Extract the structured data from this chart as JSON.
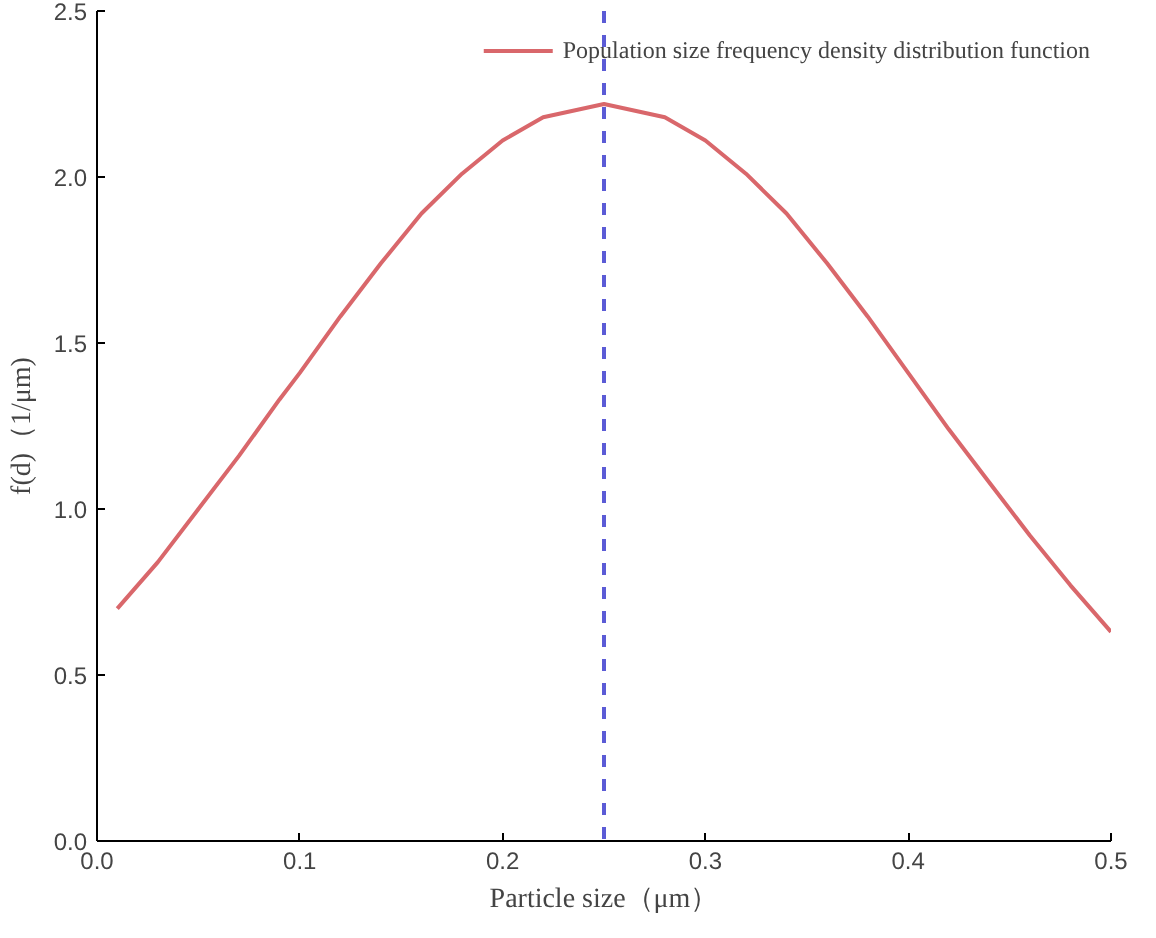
{
  "chart_data": {
    "type": "line",
    "xlabel": "Particle size（μm）",
    "ylabel": "f(d)（1/μm)",
    "xlim": [
      0,
      0.5
    ],
    "ylim": [
      0,
      2.5
    ],
    "xticks": [
      {
        "value": 0,
        "label": "0.0"
      },
      0.1,
      0.2,
      0.3,
      0.4,
      0.5
    ],
    "yticks": [
      {
        "value": 0,
        "label": "0.0"
      },
      0.5,
      {
        "value": 1,
        "label": "1.0"
      },
      1.5,
      {
        "value": 2,
        "label": "2.0"
      },
      2.5
    ],
    "series": [
      {
        "name": "Population size frequency density distribution function",
        "color": "#d9676b",
        "x": [
          0.01,
          0.03,
          0.05,
          0.07,
          0.09,
          0.1,
          0.12,
          0.14,
          0.16,
          0.18,
          0.2,
          0.22,
          0.25,
          0.28,
          0.3,
          0.32,
          0.34,
          0.36,
          0.38,
          0.4,
          0.42,
          0.44,
          0.46,
          0.48,
          0.5
        ],
        "values": [
          0.7,
          0.84,
          1.0,
          1.16,
          1.33,
          1.41,
          1.58,
          1.74,
          1.89,
          2.01,
          2.11,
          2.18,
          2.22,
          2.18,
          2.11,
          2.01,
          1.89,
          1.74,
          1.58,
          1.41,
          1.24,
          1.08,
          0.92,
          0.77,
          0.63
        ]
      }
    ],
    "ref_lines": [
      {
        "axis": "x",
        "value": 0.25,
        "color": "#5b5bd6",
        "line_style": "dashed"
      }
    ],
    "legend": "top right",
    "grid": false,
    "line_style": "solid"
  }
}
